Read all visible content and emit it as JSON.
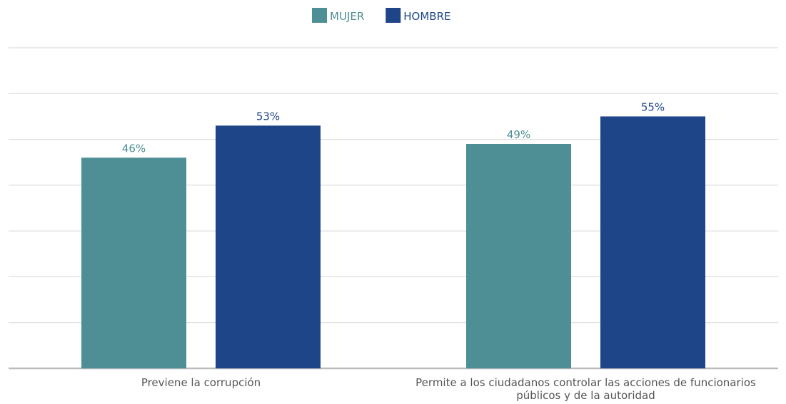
{
  "chart_data": {
    "type": "bar",
    "categories": [
      "Previene la corrupción",
      "Permite a los ciudadanos controlar las acciones de funcionarios públicos y de la autoridad"
    ],
    "series": [
      {
        "name": "MUJER",
        "color": "#4e8f95",
        "values": [
          46,
          49
        ],
        "value_labels": [
          "46%",
          "49%"
        ]
      },
      {
        "name": "HOMBRE",
        "color": "#1f4589",
        "values": [
          53,
          55
        ],
        "value_labels": [
          "53%",
          "55%"
        ]
      }
    ],
    "ylim": [
      0,
      70
    ],
    "yticks": [
      0,
      10,
      20,
      30,
      40,
      50,
      60,
      70
    ],
    "grid": true,
    "legend": "top"
  }
}
